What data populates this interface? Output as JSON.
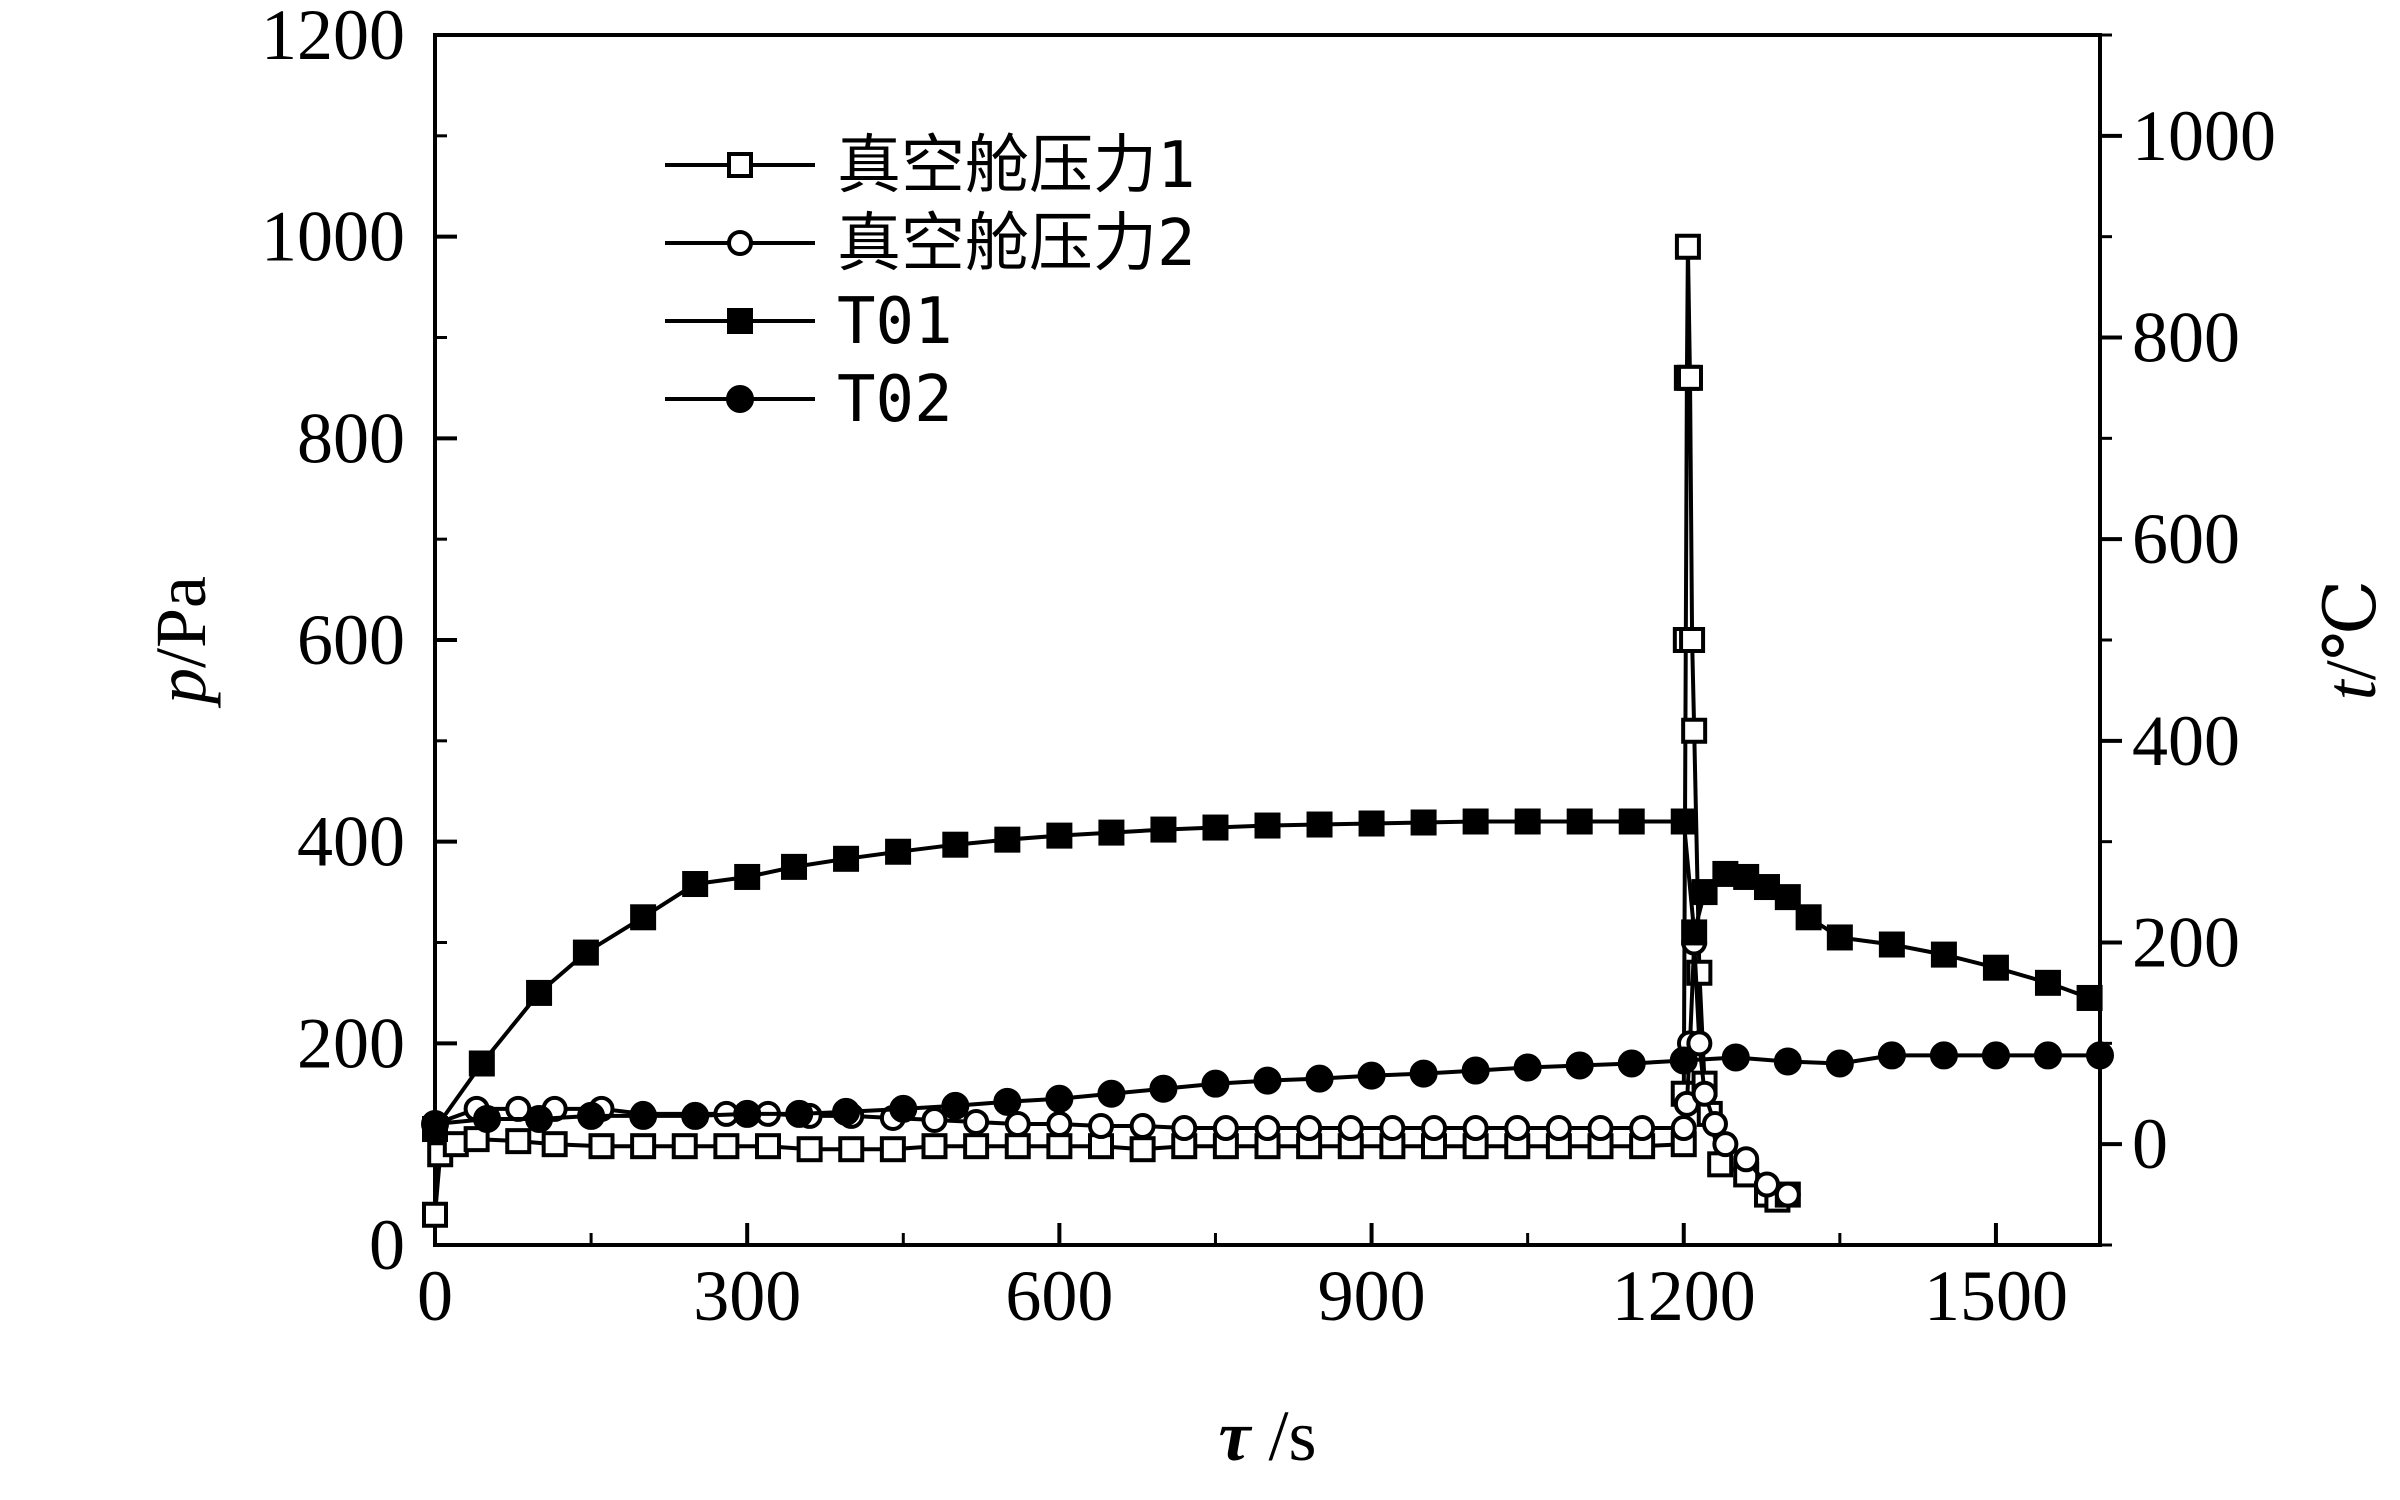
{
  "chart_data": {
    "type": "line",
    "xlabel_symbol": "τ",
    "xlabel_unit": " /s",
    "ylabel_symbol": "p",
    "ylabel_unit": "/Pa",
    "y2label_symbol": "t",
    "y2label_unit": "/℃",
    "xlim": [
      0,
      1600
    ],
    "ylim": [
      0,
      1200
    ],
    "y2lim": [
      -100,
      1100
    ],
    "x_ticks": [
      0,
      300,
      600,
      900,
      1200,
      1500
    ],
    "y_ticks": [
      0,
      200,
      400,
      600,
      800,
      1000,
      1200
    ],
    "y2_ticks": [
      0,
      200,
      400,
      600,
      800,
      1000
    ],
    "legend_position": "top-left",
    "grid": false,
    "series": [
      {
        "name": "真空舱压力1",
        "axis": "left",
        "marker": "square-open",
        "points": [
          [
            0,
            30
          ],
          [
            5,
            90
          ],
          [
            20,
            100
          ],
          [
            40,
            105
          ],
          [
            80,
            103
          ],
          [
            115,
            100
          ],
          [
            160,
            98
          ],
          [
            200,
            98
          ],
          [
            240,
            98
          ],
          [
            280,
            98
          ],
          [
            320,
            98
          ],
          [
            360,
            95
          ],
          [
            400,
            95
          ],
          [
            440,
            95
          ],
          [
            480,
            98
          ],
          [
            520,
            98
          ],
          [
            560,
            98
          ],
          [
            600,
            98
          ],
          [
            640,
            98
          ],
          [
            680,
            95
          ],
          [
            720,
            98
          ],
          [
            760,
            98
          ],
          [
            800,
            98
          ],
          [
            840,
            98
          ],
          [
            880,
            98
          ],
          [
            920,
            98
          ],
          [
            960,
            98
          ],
          [
            1000,
            98
          ],
          [
            1040,
            98
          ],
          [
            1080,
            98
          ],
          [
            1120,
            98
          ],
          [
            1160,
            98
          ],
          [
            1200,
            100
          ],
          [
            1200,
            150
          ],
          [
            1202,
            600
          ],
          [
            1203,
            860
          ],
          [
            1204,
            990
          ],
          [
            1206,
            860
          ],
          [
            1208,
            600
          ],
          [
            1210,
            510
          ],
          [
            1215,
            270
          ],
          [
            1220,
            160
          ],
          [
            1225,
            130
          ],
          [
            1235,
            80
          ],
          [
            1260,
            70
          ],
          [
            1280,
            50
          ],
          [
            1290,
            45
          ],
          [
            1300,
            50
          ]
        ]
      },
      {
        "name": "真空舱压力2",
        "axis": "left",
        "marker": "circle-open",
        "points": [
          [
            0,
            120
          ],
          [
            40,
            135
          ],
          [
            80,
            135
          ],
          [
            115,
            135
          ],
          [
            160,
            135
          ],
          [
            200,
            130
          ],
          [
            280,
            130
          ],
          [
            320,
            130
          ],
          [
            360,
            128
          ],
          [
            400,
            128
          ],
          [
            440,
            126
          ],
          [
            480,
            124
          ],
          [
            520,
            122
          ],
          [
            560,
            120
          ],
          [
            600,
            120
          ],
          [
            640,
            118
          ],
          [
            680,
            118
          ],
          [
            720,
            116
          ],
          [
            760,
            116
          ],
          [
            800,
            116
          ],
          [
            840,
            116
          ],
          [
            880,
            116
          ],
          [
            920,
            116
          ],
          [
            960,
            116
          ],
          [
            1000,
            116
          ],
          [
            1040,
            116
          ],
          [
            1080,
            116
          ],
          [
            1120,
            116
          ],
          [
            1160,
            116
          ],
          [
            1200,
            116
          ],
          [
            1203,
            140
          ],
          [
            1206,
            200
          ],
          [
            1210,
            300
          ],
          [
            1215,
            200
          ],
          [
            1220,
            150
          ],
          [
            1230,
            120
          ],
          [
            1240,
            100
          ],
          [
            1260,
            85
          ],
          [
            1280,
            60
          ],
          [
            1300,
            50
          ]
        ]
      },
      {
        "name": "T01",
        "axis": "right",
        "marker": "square-filled",
        "points": [
          [
            0,
            15
          ],
          [
            45,
            80
          ],
          [
            100,
            150
          ],
          [
            145,
            190
          ],
          [
            200,
            225
          ],
          [
            250,
            258
          ],
          [
            300,
            265
          ],
          [
            345,
            275
          ],
          [
            395,
            283
          ],
          [
            445,
            290
          ],
          [
            500,
            297
          ],
          [
            550,
            302
          ],
          [
            600,
            306
          ],
          [
            650,
            309
          ],
          [
            700,
            312
          ],
          [
            750,
            314
          ],
          [
            800,
            316
          ],
          [
            850,
            317
          ],
          [
            900,
            318
          ],
          [
            950,
            319
          ],
          [
            1000,
            320
          ],
          [
            1050,
            320
          ],
          [
            1100,
            320
          ],
          [
            1150,
            320
          ],
          [
            1200,
            320
          ],
          [
            1210,
            210
          ],
          [
            1220,
            250
          ],
          [
            1240,
            268
          ],
          [
            1260,
            265
          ],
          [
            1280,
            255
          ],
          [
            1300,
            245
          ],
          [
            1320,
            225
          ],
          [
            1350,
            205
          ],
          [
            1400,
            198
          ],
          [
            1450,
            188
          ],
          [
            1500,
            175
          ],
          [
            1550,
            160
          ],
          [
            1590,
            145
          ]
        ]
      },
      {
        "name": "T02",
        "axis": "right",
        "marker": "circle-filled",
        "points": [
          [
            0,
            20
          ],
          [
            50,
            25
          ],
          [
            100,
            25
          ],
          [
            150,
            28
          ],
          [
            200,
            28
          ],
          [
            250,
            28
          ],
          [
            300,
            30
          ],
          [
            350,
            30
          ],
          [
            395,
            32
          ],
          [
            450,
            35
          ],
          [
            500,
            38
          ],
          [
            550,
            42
          ],
          [
            600,
            45
          ],
          [
            650,
            50
          ],
          [
            700,
            55
          ],
          [
            750,
            60
          ],
          [
            800,
            63
          ],
          [
            850,
            65
          ],
          [
            900,
            68
          ],
          [
            950,
            70
          ],
          [
            1000,
            73
          ],
          [
            1050,
            76
          ],
          [
            1100,
            78
          ],
          [
            1150,
            80
          ],
          [
            1200,
            83
          ],
          [
            1250,
            86
          ],
          [
            1300,
            82
          ],
          [
            1350,
            80
          ],
          [
            1400,
            88
          ],
          [
            1450,
            88
          ],
          [
            1500,
            88
          ],
          [
            1550,
            88
          ],
          [
            1600,
            88
          ]
        ]
      }
    ]
  }
}
